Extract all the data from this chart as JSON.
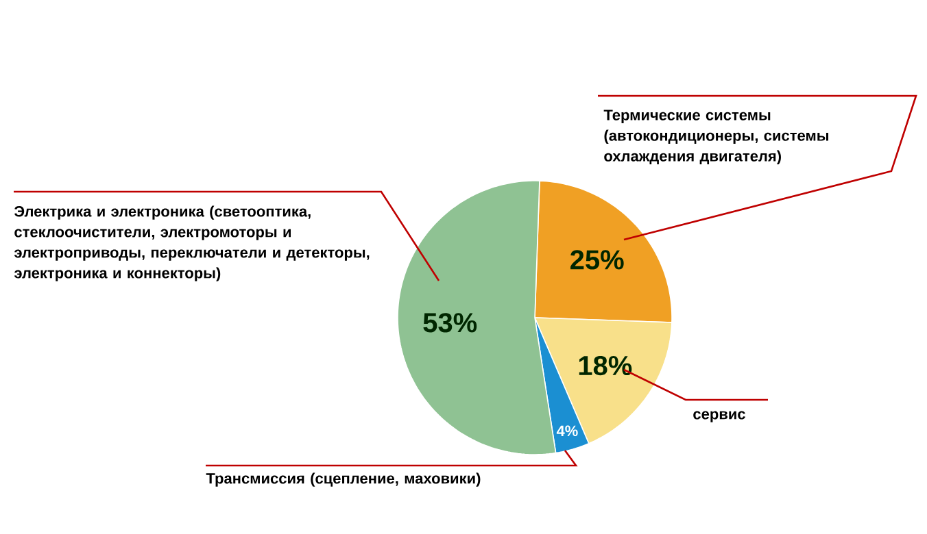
{
  "chart_data": {
    "type": "pie",
    "categories": [
      "Термические системы (автокондиционеры, системы охлаждения двигателя)",
      "сервис",
      "Трансмиссия (сцепление, маховики)",
      "Электрика и электроника (светооптика, стеклоочистители, электромоторы и электроприводы, переключатели и детекторы, электроника и коннекторы)"
    ],
    "values": [
      25,
      18,
      4,
      53
    ],
    "value_labels": [
      "25%",
      "18%",
      "4%",
      "53%"
    ],
    "colors": [
      "#f0a024",
      "#f8e08a",
      "#1b8fd2",
      "#8fc293"
    ]
  }
}
